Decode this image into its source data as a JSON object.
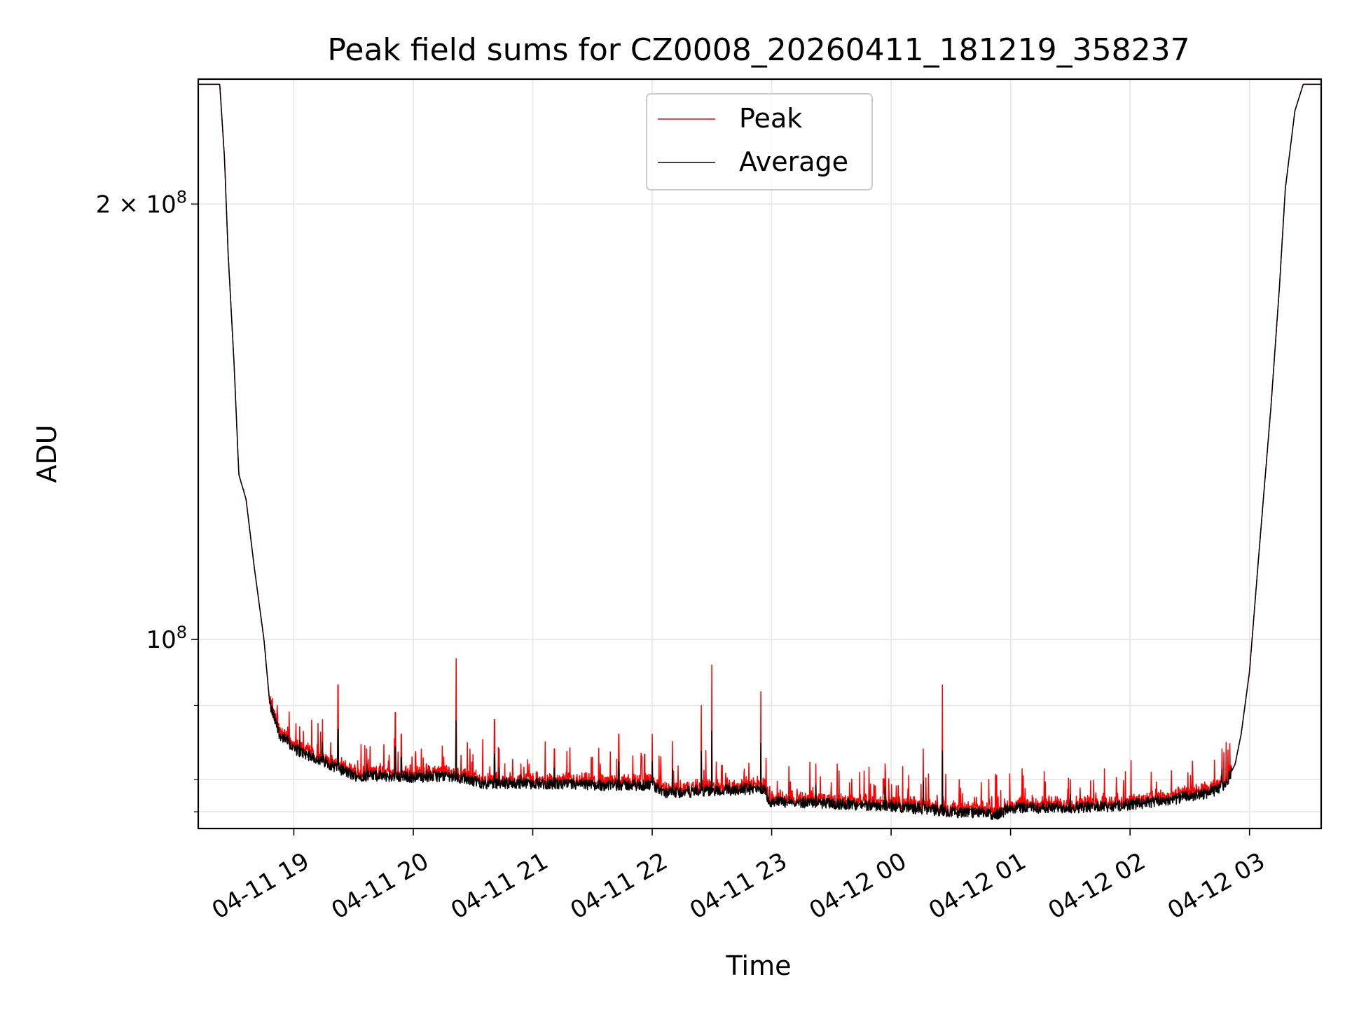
{
  "chart_data": {
    "type": "line",
    "title": "Peak field sums for CZ0008_20260411_181219_358237",
    "xlabel": "Time",
    "ylabel": "ADU",
    "yscale": "log",
    "ylim": [
      74000000,
      244000000
    ],
    "xlim_hours": [
      -0.8,
      8.6
    ],
    "grid": true,
    "legend_position": "upper center",
    "x_ticks": [
      {
        "hour": 0,
        "label": "04-11 19"
      },
      {
        "hour": 1,
        "label": "04-11 20"
      },
      {
        "hour": 2,
        "label": "04-11 21"
      },
      {
        "hour": 3,
        "label": "04-11 22"
      },
      {
        "hour": 4,
        "label": "04-11 23"
      },
      {
        "hour": 5,
        "label": "04-12 00"
      },
      {
        "hour": 6,
        "label": "04-12 01"
      },
      {
        "hour": 7,
        "label": "04-12 02"
      },
      {
        "hour": 8,
        "label": "04-12 03"
      }
    ],
    "y_major_ticks": [
      {
        "value": 100000000,
        "base": "10",
        "exp": "8",
        "coef": ""
      },
      {
        "value": 200000000,
        "base": "10",
        "exp": "8",
        "coef": "2 × "
      }
    ],
    "y_minor_ticks": [
      76000000,
      80000000,
      90000000
    ],
    "series": [
      {
        "name": "Peak",
        "color": "#ff0000",
        "spikes": [
          {
            "hour": -0.42,
            "value": 127000000
          },
          {
            "hour": -0.24,
            "value": 98000000
          },
          {
            "hour": -0.18,
            "value": 91000000
          },
          {
            "hour": -0.05,
            "value": 87000000
          },
          {
            "hour": 0.05,
            "value": 87000000
          },
          {
            "hour": 0.24,
            "value": 88000000
          },
          {
            "hour": 0.37,
            "value": 93000000
          },
          {
            "hour": 0.61,
            "value": 84000000
          },
          {
            "hour": 0.85,
            "value": 89000000
          },
          {
            "hour": 0.9,
            "value": 86000000
          },
          {
            "hour": 1.11,
            "value": 82000000
          },
          {
            "hour": 1.36,
            "value": 97000000
          },
          {
            "hour": 1.68,
            "value": 88000000
          },
          {
            "hour": 1.72,
            "value": 84000000
          },
          {
            "hour": 1.9,
            "value": 82000000
          },
          {
            "hour": 2.18,
            "value": 84000000
          },
          {
            "hour": 2.72,
            "value": 86000000
          },
          {
            "hour": 3.0,
            "value": 86000000
          },
          {
            "hour": 3.17,
            "value": 85000000
          },
          {
            "hour": 3.41,
            "value": 90000000
          },
          {
            "hour": 3.5,
            "value": 96000000
          },
          {
            "hour": 3.91,
            "value": 92000000
          },
          {
            "hour": 4.37,
            "value": 82000000
          },
          {
            "hour": 4.95,
            "value": 82000000
          },
          {
            "hour": 5.27,
            "value": 84000000
          },
          {
            "hour": 5.43,
            "value": 93000000
          },
          {
            "hour": 6.5,
            "value": 80000000
          },
          {
            "hour": 7.77,
            "value": 84000000
          }
        ]
      },
      {
        "name": "Average",
        "color": "#000000",
        "baseline_points": [
          {
            "hour": -0.8,
            "value": 242000000
          },
          {
            "hour": -0.62,
            "value": 242000000
          },
          {
            "hour": -0.58,
            "value": 215000000
          },
          {
            "hour": -0.55,
            "value": 185000000
          },
          {
            "hour": -0.5,
            "value": 155000000
          },
          {
            "hour": -0.46,
            "value": 130000000
          },
          {
            "hour": -0.4,
            "value": 125000000
          },
          {
            "hour": -0.33,
            "value": 112000000
          },
          {
            "hour": -0.25,
            "value": 100000000
          },
          {
            "hour": -0.2,
            "value": 90000000
          },
          {
            "hour": -0.12,
            "value": 86000000
          },
          {
            "hour": 0.0,
            "value": 84000000
          },
          {
            "hour": 0.3,
            "value": 82000000
          },
          {
            "hour": 0.5,
            "value": 80500000
          },
          {
            "hour": 0.7,
            "value": 80500000
          },
          {
            "hour": 1.0,
            "value": 80300000
          },
          {
            "hour": 1.3,
            "value": 80500000
          },
          {
            "hour": 1.6,
            "value": 79500000
          },
          {
            "hour": 2.0,
            "value": 79500000
          },
          {
            "hour": 2.5,
            "value": 79300000
          },
          {
            "hour": 3.0,
            "value": 79300000
          },
          {
            "hour": 3.1,
            "value": 78300000
          },
          {
            "hour": 3.5,
            "value": 78600000
          },
          {
            "hour": 3.8,
            "value": 78800000
          },
          {
            "hour": 3.95,
            "value": 78800000
          },
          {
            "hour": 3.97,
            "value": 77300000
          },
          {
            "hour": 4.5,
            "value": 77000000
          },
          {
            "hour": 5.0,
            "value": 76700000
          },
          {
            "hour": 5.3,
            "value": 76300000
          },
          {
            "hour": 5.6,
            "value": 75900000
          },
          {
            "hour": 5.9,
            "value": 75700000
          },
          {
            "hour": 6.0,
            "value": 76500000
          },
          {
            "hour": 6.5,
            "value": 76500000
          },
          {
            "hour": 6.9,
            "value": 76700000
          },
          {
            "hour": 7.3,
            "value": 77400000
          },
          {
            "hour": 7.55,
            "value": 78000000
          },
          {
            "hour": 7.7,
            "value": 78500000
          },
          {
            "hour": 7.8,
            "value": 79500000
          },
          {
            "hour": 7.88,
            "value": 82000000
          },
          {
            "hour": 7.93,
            "value": 86000000
          },
          {
            "hour": 8.0,
            "value": 95000000
          },
          {
            "hour": 8.08,
            "value": 115000000
          },
          {
            "hour": 8.18,
            "value": 145000000
          },
          {
            "hour": 8.25,
            "value": 175000000
          },
          {
            "hour": 8.3,
            "value": 205000000
          },
          {
            "hour": 8.38,
            "value": 232000000
          },
          {
            "hour": 8.45,
            "value": 242000000
          },
          {
            "hour": 8.6,
            "value": 242000000
          }
        ]
      }
    ]
  }
}
